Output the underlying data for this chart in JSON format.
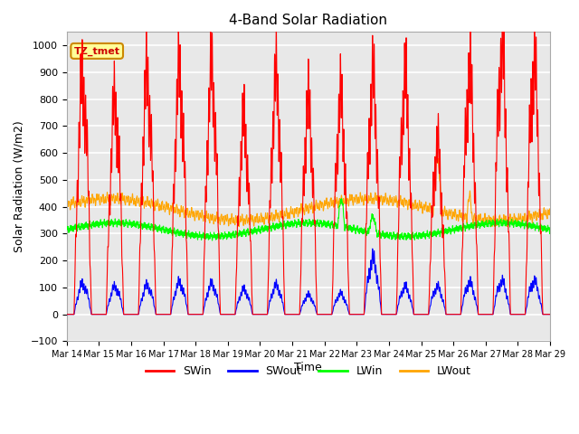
{
  "title": "4-Band Solar Radiation",
  "xlabel": "Time",
  "ylabel": "Solar Radiation (W/m2)",
  "ylim": [
    -100,
    1050
  ],
  "xlim": [
    0,
    360
  ],
  "fig_bg_color": "#ffffff",
  "plot_bg_color": "#e8e8e8",
  "grid_color": "white",
  "legend_labels": [
    "SWin",
    "SWout",
    "LWin",
    "LWout"
  ],
  "legend_colors": [
    "red",
    "blue",
    "lime",
    "orange"
  ],
  "annotation_text": "TZ_tmet",
  "annotation_bg": "#ffff99",
  "annotation_border": "#cc8800",
  "xtick_labels": [
    "Mar 14",
    "Mar 15",
    "Mar 16",
    "Mar 17",
    "Mar 18",
    "Mar 19",
    "Mar 20",
    "Mar 21",
    "Mar 22",
    "Mar 23",
    "Mar 24",
    "Mar 25",
    "Mar 26",
    "Mar 27",
    "Mar 28",
    "Mar 29"
  ],
  "xtick_positions": [
    0,
    24,
    48,
    72,
    96,
    120,
    144,
    168,
    192,
    216,
    240,
    264,
    288,
    312,
    336,
    360
  ],
  "n_hours": 3601,
  "hours_per_day": 24,
  "n_days": 15,
  "SWin_peaks": [
    850,
    770,
    860,
    870,
    880,
    700,
    850,
    760,
    780,
    850,
    850,
    610,
    880,
    960,
    905
  ],
  "SWout_peaks": [
    110,
    100,
    105,
    115,
    110,
    90,
    105,
    70,
    75,
    200,
    100,
    100,
    115,
    120,
    120
  ],
  "LWin_base": 315,
  "LWin_amp": 25,
  "LWout_base": 390,
  "LWout_amp": 40,
  "line_width": 0.8
}
